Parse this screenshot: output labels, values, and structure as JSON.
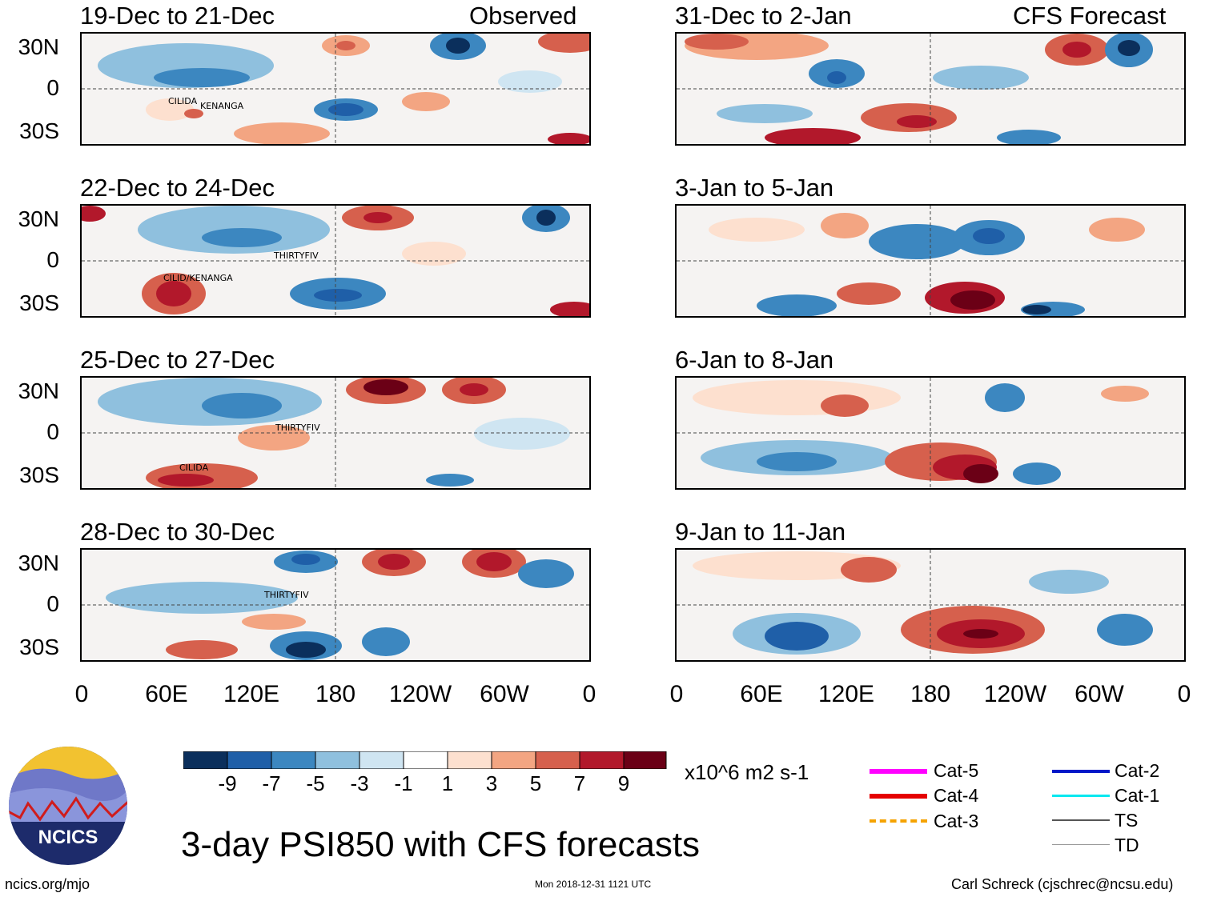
{
  "main_title": "3-day PSI850 with CFS forecasts",
  "observed_label": "Observed",
  "forecast_label": "CFS Forecast",
  "lat_labels": [
    "30N",
    "0",
    "30S"
  ],
  "lon_labels": [
    "0",
    "60E",
    "120E",
    "180",
    "120W",
    "60W",
    "0"
  ],
  "panels": [
    {
      "title": "19-Dec to 21-Dec",
      "storms": [
        "CILIDA",
        "KENANGA"
      ]
    },
    {
      "title": "22-Dec to 24-Dec",
      "storms": [
        "THIRTYFIV",
        "CILID/KENANGA"
      ]
    },
    {
      "title": "25-Dec to 27-Dec",
      "storms": [
        "THIRTYFIV",
        "CILIDA"
      ]
    },
    {
      "title": "28-Dec to 30-Dec",
      "storms": [
        "THIRTYFIV"
      ]
    },
    {
      "title": "31-Dec to 2-Jan",
      "storms": []
    },
    {
      "title": "3-Jan to 5-Jan",
      "storms": []
    },
    {
      "title": "6-Jan to 8-Jan",
      "storms": []
    },
    {
      "title": "9-Jan to 11-Jan",
      "storms": []
    }
  ],
  "colorbar": {
    "colors": [
      "#0b2f5c",
      "#1f5fa8",
      "#3c87c0",
      "#8fc0de",
      "#cfe5f2",
      "#ffffff",
      "#fde0cf",
      "#f3a582",
      "#d6604d",
      "#b2182b",
      "#6b0016"
    ],
    "labels": [
      "-9",
      "-7",
      "-5",
      "-3",
      "-1",
      "1",
      "3",
      "5",
      "7",
      "9"
    ],
    "units": "x10^6 m2 s-1"
  },
  "legend": [
    {
      "label": "Cat-5",
      "color": "#ff00ff"
    },
    {
      "label": "Cat-4",
      "color": "#e50000"
    },
    {
      "label": "Cat-3",
      "color": "#f5a300"
    },
    {
      "label": "Cat-2",
      "color": "#0018c8"
    },
    {
      "label": "Cat-1",
      "color": "#00e8f0"
    },
    {
      "label": "TS",
      "color": "#555555"
    },
    {
      "label": "TD",
      "color": "#999999"
    }
  ],
  "logo_text": "NCICS",
  "footer": {
    "url": "ncics.org/mjo",
    "timestamp": "Mon 2018-12-31 1121 UTC",
    "credit": "Carl Schreck (cjschrec@ncsu.edu)"
  }
}
